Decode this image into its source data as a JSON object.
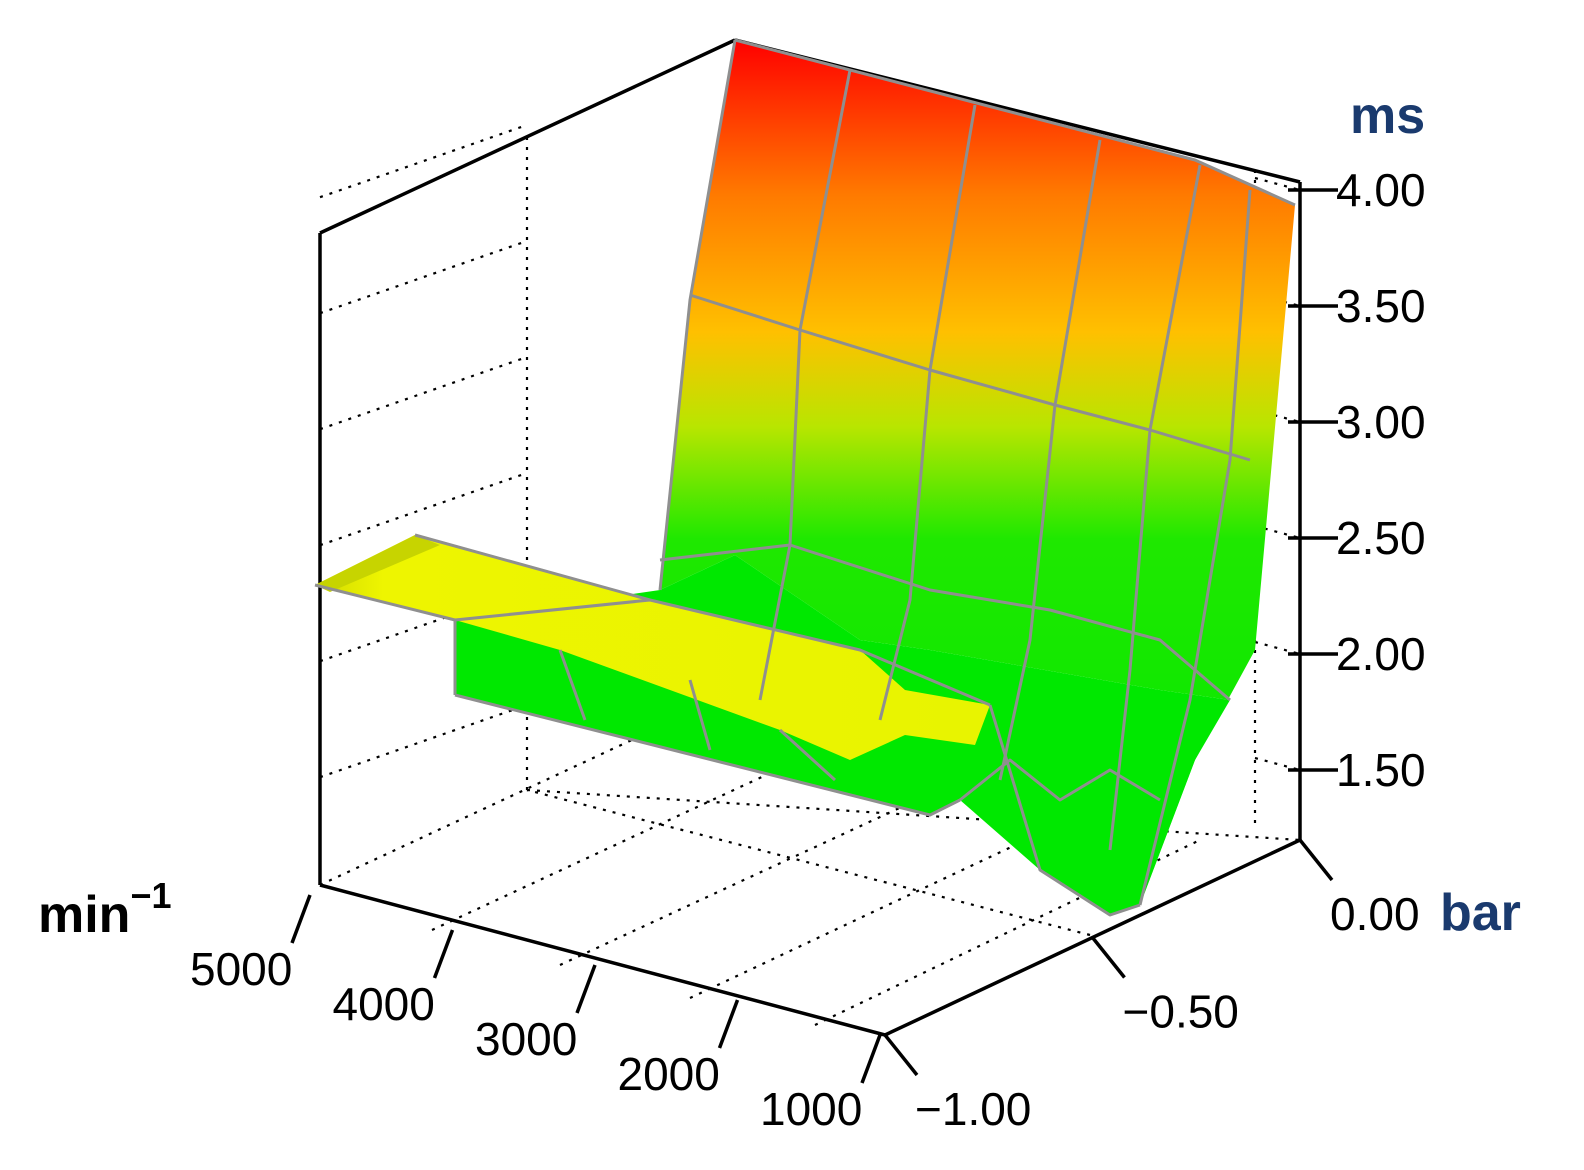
{
  "chart_data": {
    "type": "surface3d",
    "z_axis": {
      "unit": "ms",
      "range": [
        1.25,
        4.0
      ],
      "ticks": [
        1.5,
        2.0,
        2.5,
        3.0,
        3.5,
        4.0
      ],
      "tick_labels": [
        "1.50",
        "2.00",
        "2.50",
        "3.00",
        "3.50",
        "4.00"
      ]
    },
    "speed_axis": {
      "unit": "min",
      "unit_exponent": "−1",
      "range": [
        1000,
        5000
      ],
      "ticks": [
        1000,
        2000,
        3000,
        4000,
        5000
      ],
      "tick_labels": [
        "1000",
        "2000",
        "3000",
        "4000",
        "5000"
      ]
    },
    "pressure_axis": {
      "unit": "bar",
      "range": [
        -1.0,
        0.0
      ],
      "ticks": [
        -1.0,
        -0.5,
        0.0
      ],
      "tick_labels": [
        "−1.00",
        "−0.50",
        "0.00"
      ]
    },
    "surface": {
      "rpm": [
        5000,
        4000,
        3000,
        2000,
        1500,
        1000
      ],
      "pressure": [
        -1.0,
        -0.6,
        -0.2,
        0.0
      ],
      "values_ms": [
        [
          2.3,
          2.3,
          4.0,
          4.0
        ],
        [
          2.1,
          2.1,
          3.9,
          3.9
        ],
        [
          1.95,
          1.95,
          3.8,
          3.8
        ],
        [
          1.8,
          1.8,
          3.7,
          3.7
        ],
        [
          1.6,
          1.6,
          3.5,
          3.5
        ],
        [
          1.3,
          1.3,
          3.1,
          3.2
        ]
      ]
    },
    "colors": {
      "low": "#00e800",
      "mid": "#f4f400",
      "high_mid": "#ffa500",
      "high": "#ff0000"
    },
    "grid": true
  }
}
